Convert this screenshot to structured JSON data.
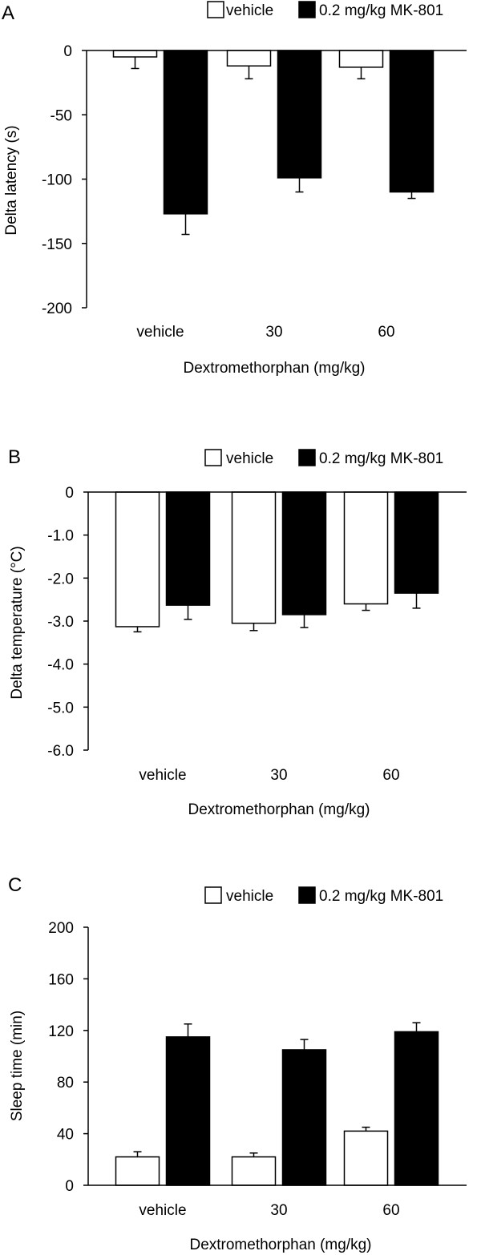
{
  "figure": {
    "legend": {
      "series1": "vehicle",
      "series2": "0.2 mg/kg MK-801",
      "series1_color": "#ffffff",
      "series2_color": "#000000"
    }
  },
  "chart_data": [
    {
      "panel": "A",
      "type": "bar",
      "xlabel": "Dextromethorphan (mg/kg)",
      "ylabel": "Delta latency (s)",
      "categories": [
        "vehicle",
        "30",
        "60"
      ],
      "ylim": [
        -200,
        0
      ],
      "yticks": [
        0,
        -50,
        -100,
        -150,
        -200
      ],
      "ytick_labels": [
        "0",
        "-50",
        "-100",
        "-150",
        "-200"
      ],
      "series": [
        {
          "name": "vehicle",
          "values": [
            -5,
            -12,
            -13
          ],
          "errors": [
            9,
            10,
            9
          ]
        },
        {
          "name": "0.2 mg/kg MK-801",
          "values": [
            -127,
            -99,
            -110
          ],
          "errors": [
            16,
            11,
            5
          ]
        }
      ],
      "legend_position": "top-right",
      "grid": false
    },
    {
      "panel": "B",
      "type": "bar",
      "xlabel": "Dextromethorphan (mg/kg)",
      "ylabel": "Delta temperature (°C)",
      "categories": [
        "vehicle",
        "30",
        "60"
      ],
      "ylim": [
        -6,
        0
      ],
      "yticks": [
        0,
        -1,
        -2,
        -3,
        -4,
        -5,
        -6
      ],
      "ytick_labels": [
        "0",
        "-1.0",
        "-2.0",
        "-3.0",
        "-4.0",
        "-5.0",
        "-6.0"
      ],
      "series": [
        {
          "name": "vehicle",
          "values": [
            -3.13,
            -3.05,
            -2.6
          ],
          "errors": [
            0.12,
            0.17,
            0.15
          ]
        },
        {
          "name": "0.2 mg/kg MK-801",
          "values": [
            -2.63,
            -2.85,
            -2.35
          ],
          "errors": [
            0.33,
            0.3,
            0.35
          ]
        }
      ],
      "legend_position": "top-right",
      "grid": false
    },
    {
      "panel": "C",
      "type": "bar",
      "xlabel": "Dextromethorphan (mg/kg)",
      "ylabel": "Sleep time (min)",
      "categories": [
        "vehicle",
        "30",
        "60"
      ],
      "ylim": [
        0,
        200
      ],
      "yticks": [
        0,
        40,
        80,
        120,
        160,
        200
      ],
      "ytick_labels": [
        "0",
        "40",
        "80",
        "120",
        "160",
        "200"
      ],
      "series": [
        {
          "name": "vehicle",
          "values": [
            22,
            22,
            42
          ],
          "errors": [
            4,
            3,
            3
          ]
        },
        {
          "name": "0.2 mg/kg MK-801",
          "values": [
            115,
            105,
            119
          ],
          "errors": [
            10,
            8,
            7
          ]
        }
      ],
      "legend_position": "top-right",
      "grid": false
    }
  ]
}
